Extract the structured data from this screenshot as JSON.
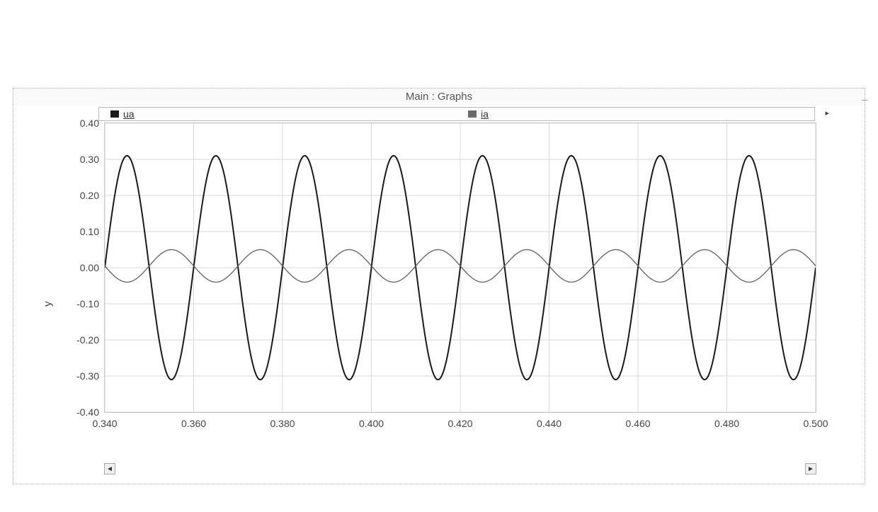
{
  "window": {
    "title": "Main : Graphs",
    "minimize_glyph": "_"
  },
  "legend": {
    "items": [
      {
        "label": "ua",
        "swatch_color": "#1a1a1a"
      },
      {
        "label": "ia",
        "swatch_color": "#6a6a6a"
      }
    ]
  },
  "chart": {
    "type": "line",
    "background_color": "#ffffff",
    "grid_color": "#d8d8d8",
    "axis_color": "#9a9a9a",
    "ylabel": "y",
    "label_fontsize": 15,
    "tick_fontsize": 14,
    "xlim": [
      0.34,
      0.5
    ],
    "ylim": [
      -0.4,
      0.4
    ],
    "xticks": [
      0.34,
      0.36,
      0.38,
      0.4,
      0.42,
      0.44,
      0.46,
      0.48,
      0.5
    ],
    "xtick_labels": [
      "0.340",
      "0.360",
      "0.380",
      "0.400",
      "0.420",
      "0.440",
      "0.460",
      "0.480",
      "0.500"
    ],
    "yticks": [
      -0.4,
      -0.3,
      -0.2,
      -0.1,
      0.0,
      0.1,
      0.2,
      0.3,
      0.4
    ],
    "ytick_labels": [
      "-0.40",
      "-0.30",
      "-0.20",
      "-0.10",
      "0.00",
      "0.10",
      "0.20",
      "0.30",
      "0.40"
    ],
    "series": [
      {
        "name": "ua",
        "color": "#1a1a1a",
        "line_width": 2.0,
        "kind": "sine",
        "amplitude": 0.31,
        "offset": 0.0,
        "period": 0.02,
        "phase_at_xmin": 0.0
      },
      {
        "name": "ia",
        "color": "#6a6a6a",
        "line_width": 1.4,
        "kind": "sine",
        "amplitude": 0.045,
        "offset": 0.005,
        "period": 0.02,
        "phase_at_xmin": 3.14159
      }
    ]
  },
  "scrollbar": {
    "left_glyph": "◄",
    "right_glyph": "►",
    "expand_glyph": "▸"
  }
}
